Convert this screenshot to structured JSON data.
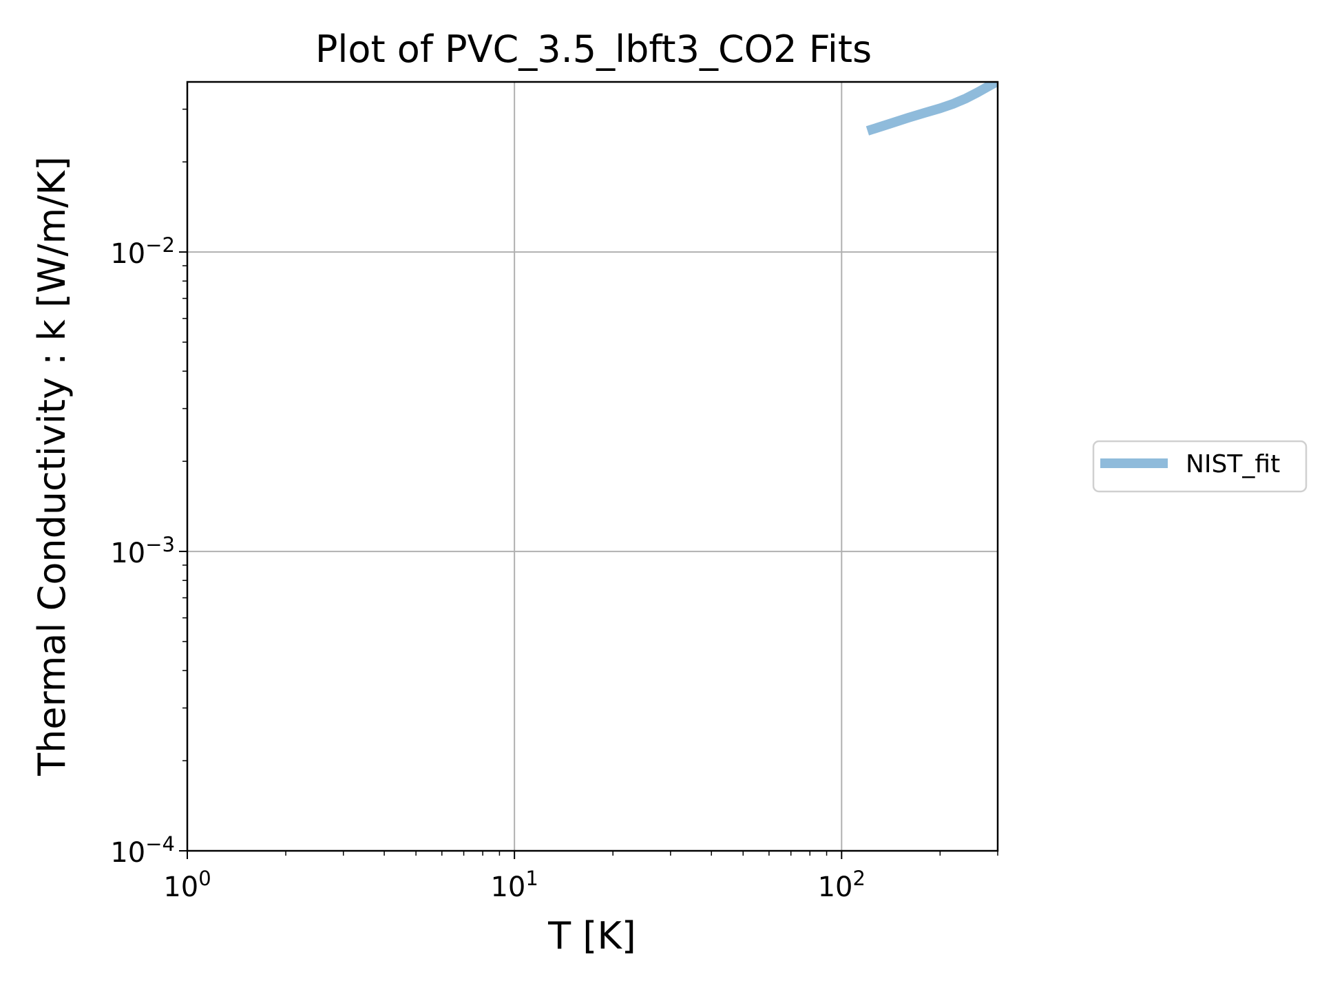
{
  "chart_data": {
    "type": "line",
    "title": "Plot of PVC_3.5_lbft3_CO2 Fits",
    "xlabel": "T [K]",
    "ylabel": "Thermal Conductivity : k [W/m/K]",
    "xscale": "log",
    "yscale": "log",
    "xlim": [
      1,
      300
    ],
    "ylim": [
      0.0001,
      0.037
    ],
    "grid": true,
    "legend_position": "outside-right",
    "x_ticks": [
      {
        "value": 1,
        "base": "10",
        "exp": "0"
      },
      {
        "value": 10,
        "base": "10",
        "exp": "1"
      },
      {
        "value": 100,
        "base": "10",
        "exp": "2"
      }
    ],
    "y_ticks": [
      {
        "value": 0.0001,
        "base": "10",
        "exp": "−4"
      },
      {
        "value": 0.001,
        "base": "10",
        "exp": "−3"
      },
      {
        "value": 0.01,
        "base": "10",
        "exp": "−2"
      }
    ],
    "series": [
      {
        "name": "NIST_fit",
        "color": "#8fbbdb",
        "x": [
          120,
          140,
          160,
          180,
          200,
          220,
          240,
          260,
          280,
          300
        ],
        "y": [
          0.0254,
          0.0268,
          0.0281,
          0.0292,
          0.0302,
          0.0313,
          0.0326,
          0.0341,
          0.0357,
          0.0372
        ]
      }
    ]
  }
}
